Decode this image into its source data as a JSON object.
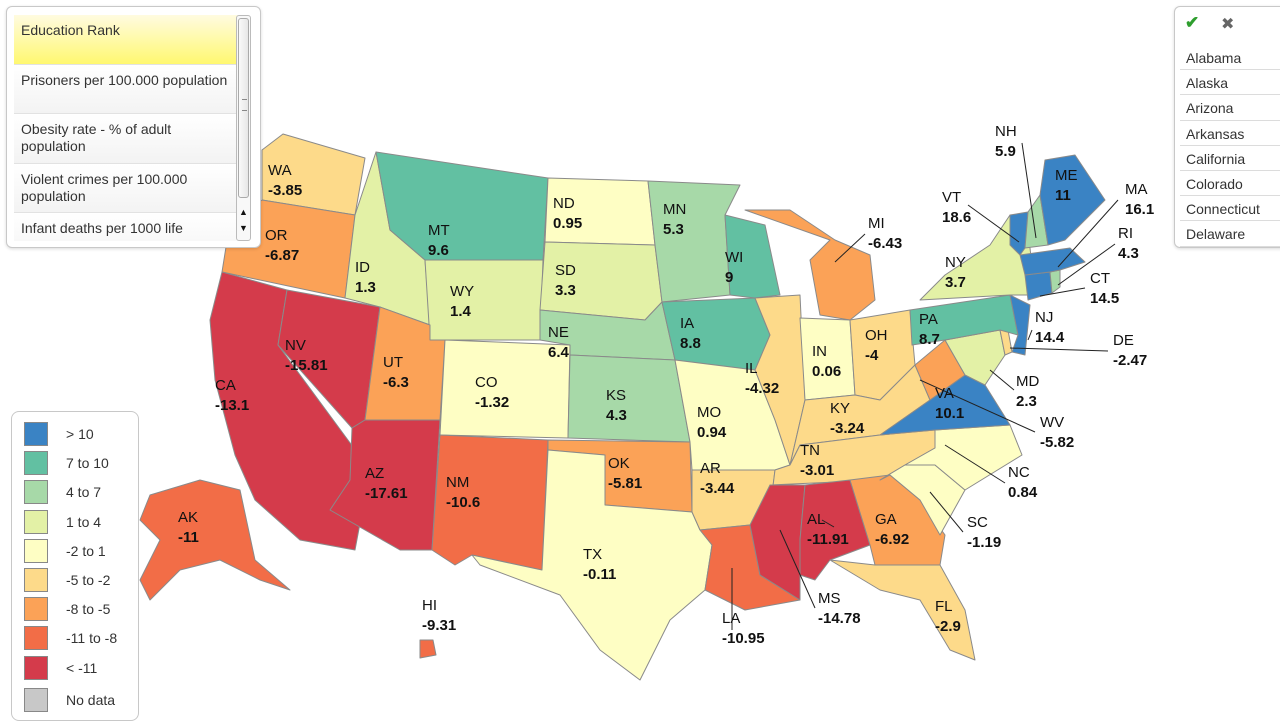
{
  "metrics": {
    "items": [
      {
        "label": "Education Rank",
        "selected": true
      },
      {
        "label": "Prisoners per 100.000 population",
        "selected": false
      },
      {
        "label": "Obesity rate - % of adult population",
        "selected": false
      },
      {
        "label": "Violent crimes per 100.000 population",
        "selected": false
      },
      {
        "label": "Infant deaths per 1000 life",
        "selected": false
      }
    ]
  },
  "legend": {
    "items": [
      {
        "label": "> 10",
        "color": "#3a83c4"
      },
      {
        "label": "7 to 10",
        "color": "#62c0a2"
      },
      {
        "label": "4 to 7",
        "color": "#a7d9a8"
      },
      {
        "label": "1 to 4",
        "color": "#e3f1a6"
      },
      {
        "label": "-2 to 1",
        "color": "#fefec4"
      },
      {
        "label": "-5 to -2",
        "color": "#fdda8a"
      },
      {
        "label": "-8 to -5",
        "color": "#fba257"
      },
      {
        "label": "-11 to -8",
        "color": "#f26d47"
      },
      {
        "label": "< -11",
        "color": "#d43b4b"
      },
      {
        "label": "No data",
        "color": "#c8c8c8"
      }
    ]
  },
  "picker": {
    "check_icon": "check-icon",
    "close_icon": "close-icon",
    "states": [
      "Alabama",
      "Alaska",
      "Arizona",
      "Arkansas",
      "California",
      "Colorado",
      "Connecticut",
      "Delaware"
    ]
  },
  "map_data": {
    "type": "choropleth",
    "region": "United States",
    "states": [
      {
        "abbr": "WA",
        "value": "-3.85",
        "bin": 5
      },
      {
        "abbr": "OR",
        "value": "-6.87",
        "bin": 6
      },
      {
        "abbr": "CA",
        "value": "-13.1",
        "bin": 8
      },
      {
        "abbr": "NV",
        "value": "-15.81",
        "bin": 8
      },
      {
        "abbr": "ID",
        "value": "1.3",
        "bin": 3
      },
      {
        "abbr": "MT",
        "value": "9.6",
        "bin": 1
      },
      {
        "abbr": "WY",
        "value": "1.4",
        "bin": 3
      },
      {
        "abbr": "UT",
        "value": "-6.3",
        "bin": 6
      },
      {
        "abbr": "AZ",
        "value": "-17.61",
        "bin": 8
      },
      {
        "abbr": "CO",
        "value": "-1.32",
        "bin": 4
      },
      {
        "abbr": "NM",
        "value": "-10.6",
        "bin": 7
      },
      {
        "abbr": "ND",
        "value": "0.95",
        "bin": 4
      },
      {
        "abbr": "SD",
        "value": "3.3",
        "bin": 3
      },
      {
        "abbr": "NE",
        "value": "6.4",
        "bin": 2
      },
      {
        "abbr": "KS",
        "value": "4.3",
        "bin": 2
      },
      {
        "abbr": "OK",
        "value": "-5.81",
        "bin": 6
      },
      {
        "abbr": "TX",
        "value": "-0.11",
        "bin": 4
      },
      {
        "abbr": "MN",
        "value": "5.3",
        "bin": 2
      },
      {
        "abbr": "IA",
        "value": "8.8",
        "bin": 1
      },
      {
        "abbr": "MO",
        "value": "0.94",
        "bin": 4
      },
      {
        "abbr": "AR",
        "value": "-3.44",
        "bin": 5
      },
      {
        "abbr": "LA",
        "value": "-10.95",
        "bin": 7
      },
      {
        "abbr": "WI",
        "value": "9",
        "bin": 1
      },
      {
        "abbr": "IL",
        "value": "-4.32",
        "bin": 5
      },
      {
        "abbr": "MI",
        "value": "-6.43",
        "bin": 6
      },
      {
        "abbr": "IN",
        "value": "0.06",
        "bin": 4
      },
      {
        "abbr": "OH",
        "value": "-4",
        "bin": 5
      },
      {
        "abbr": "KY",
        "value": "-3.24",
        "bin": 5
      },
      {
        "abbr": "TN",
        "value": "-3.01",
        "bin": 5
      },
      {
        "abbr": "MS",
        "value": "-14.78",
        "bin": 8
      },
      {
        "abbr": "AL",
        "value": "-11.91",
        "bin": 8
      },
      {
        "abbr": "GA",
        "value": "-6.92",
        "bin": 6
      },
      {
        "abbr": "FL",
        "value": "-2.9",
        "bin": 5
      },
      {
        "abbr": "SC",
        "value": "-1.19",
        "bin": 4
      },
      {
        "abbr": "NC",
        "value": "0.84",
        "bin": 4
      },
      {
        "abbr": "VA",
        "value": "10.1",
        "bin": 0
      },
      {
        "abbr": "WV",
        "value": "-5.82",
        "bin": 6
      },
      {
        "abbr": "MD",
        "value": "2.3",
        "bin": 3
      },
      {
        "abbr": "DE",
        "value": "-2.47",
        "bin": 5
      },
      {
        "abbr": "PA",
        "value": "8.7",
        "bin": 1
      },
      {
        "abbr": "NJ",
        "value": "14.4",
        "bin": 0
      },
      {
        "abbr": "NY",
        "value": "3.7",
        "bin": 3
      },
      {
        "abbr": "CT",
        "value": "14.5",
        "bin": 0
      },
      {
        "abbr": "RI",
        "value": "4.3",
        "bin": 2
      },
      {
        "abbr": "MA",
        "value": "16.1",
        "bin": 0
      },
      {
        "abbr": "VT",
        "value": "18.6",
        "bin": 0
      },
      {
        "abbr": "NH",
        "value": "5.9",
        "bin": 2
      },
      {
        "abbr": "ME",
        "value": "11",
        "bin": 0
      },
      {
        "abbr": "AK",
        "value": "-11",
        "bin": 7
      },
      {
        "abbr": "HI",
        "value": "-9.31",
        "bin": 7
      }
    ]
  }
}
